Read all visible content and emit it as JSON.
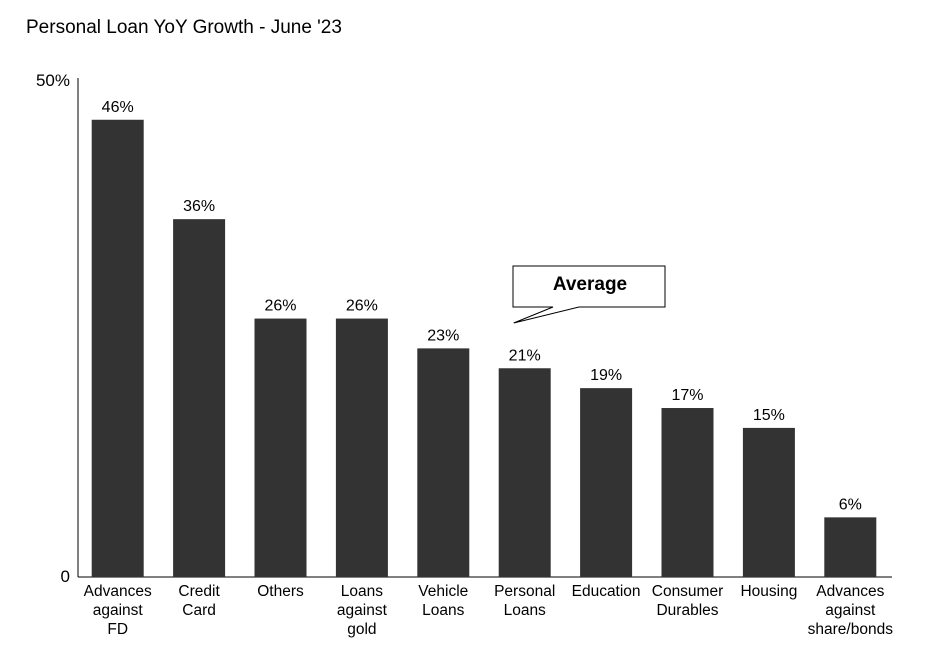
{
  "chart_data": {
    "type": "bar",
    "title": "Personal Loan YoY Growth - June '23",
    "categories": [
      [
        "Advances",
        "against",
        "FD"
      ],
      [
        "Credit",
        "Card"
      ],
      [
        "Others"
      ],
      [
        "Loans",
        "against",
        "gold"
      ],
      [
        "Vehicle",
        "Loans"
      ],
      [
        "Personal",
        "Loans"
      ],
      [
        "Education"
      ],
      [
        "Consumer",
        "Durables"
      ],
      [
        "Housing"
      ],
      [
        "Advances",
        "against",
        "share/bonds"
      ]
    ],
    "values": [
      46,
      36,
      26,
      26,
      23,
      21,
      19,
      17,
      15,
      6
    ],
    "data_labels": [
      "46%",
      "36%",
      "26%",
      "26%",
      "23%",
      "21%",
      "19%",
      "17%",
      "15%",
      "6%"
    ],
    "ylim": [
      0,
      50
    ],
    "y_tick_labels": [
      "0",
      "50%"
    ],
    "xlabel": "",
    "ylabel": "",
    "grid": false,
    "bar_color": "#333333",
    "callout": {
      "text": "Average",
      "category_index": 5
    }
  }
}
